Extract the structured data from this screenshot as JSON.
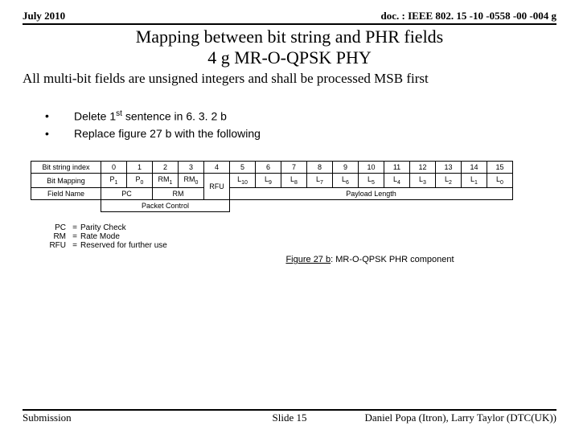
{
  "header": {
    "date": "July 2010",
    "docnum": "doc. : IEEE 802. 15 -10 -0558 -00 -004 g"
  },
  "title_line1": "Mapping between bit string and PHR fields",
  "title_line2": "4 g MR-O-QPSK PHY",
  "subhead": "All multi-bit fields are unsigned integers and shall be processed MSB first",
  "bullets": {
    "b1a": "Delete 1",
    "b1sup": "st",
    "b1b": " sentence in 6. 3. 2 b",
    "b2": "Replace figure 27 b with the following"
  },
  "table": {
    "row_labels": {
      "r1": "Bit string index",
      "r2": "Bit Mapping",
      "r3": "Field Name"
    },
    "idx": [
      "0",
      "1",
      "2",
      "3",
      "4",
      "5",
      "6",
      "7",
      "8",
      "9",
      "10",
      "11",
      "12",
      "13",
      "14",
      "15"
    ],
    "map": {
      "m0": "P",
      "m0s": "1",
      "m1": "P",
      "m1s": "0",
      "m2": "RM",
      "m2s": "1",
      "m3": "RM",
      "m3s": "0",
      "m5": "L",
      "m5s": "10",
      "m6": "L",
      "m6s": "9",
      "m7": "L",
      "m7s": "8",
      "m8": "L",
      "m8s": "7",
      "m9": "L",
      "m9s": "6",
      "m10": "L",
      "m10s": "5",
      "m11": "L",
      "m11s": "4",
      "m12": "L",
      "m12s": "3",
      "m13": "L",
      "m13s": "2",
      "m14": "L",
      "m14s": "1",
      "m15": "L",
      "m15s": "0"
    },
    "rfu": "RFU",
    "fields": {
      "pc": "PC",
      "rm": "RM",
      "payload": "Payload Length",
      "packet_control": "Packet Control"
    }
  },
  "legend": {
    "k1": "PC",
    "v1": "Parity Check",
    "k2": "RM",
    "v2": "Rate Mode",
    "k3": "RFU",
    "v3": "Reserved for further use"
  },
  "figcap_a": "Figure 27 b",
  "figcap_b": ": MR-O-QPSK PHR component",
  "footer": {
    "left": "Submission",
    "mid": "Slide 15",
    "right": "Daniel Popa (Itron), Larry Taylor (DTC(UK))"
  }
}
